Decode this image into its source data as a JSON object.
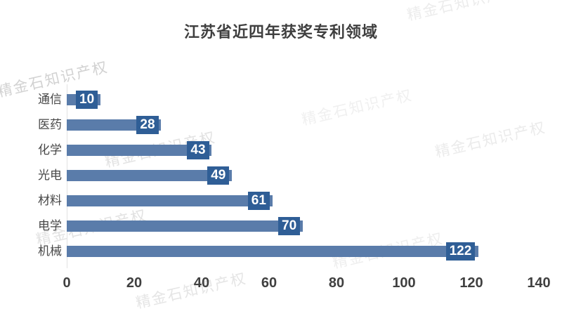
{
  "title": "江苏省近四年获奖专利领域",
  "watermark_text": "精金石知识产权",
  "colors": {
    "bar": "#5a7caa",
    "value_box": "#2f5e96",
    "value_text": "#ffffff",
    "axis_text": "#404040",
    "category_text": "#474747",
    "title_text": "#3f3f3f"
  },
  "chart_data": {
    "type": "bar",
    "orientation": "horizontal",
    "title": "江苏省近四年获奖专利领域",
    "categories": [
      "通信",
      "医药",
      "化学",
      "光电",
      "材料",
      "电学",
      "机械"
    ],
    "values": [
      10,
      28,
      43,
      49,
      61,
      70,
      122
    ],
    "data_labels": [
      "10",
      "28",
      "43",
      "49",
      "61",
      "70",
      "122"
    ],
    "xlabel": "",
    "ylabel": "",
    "xlim": [
      0,
      140
    ],
    "x_ticks": [
      0,
      20,
      40,
      60,
      80,
      100,
      120,
      140
    ],
    "grid": false,
    "legend": false
  }
}
